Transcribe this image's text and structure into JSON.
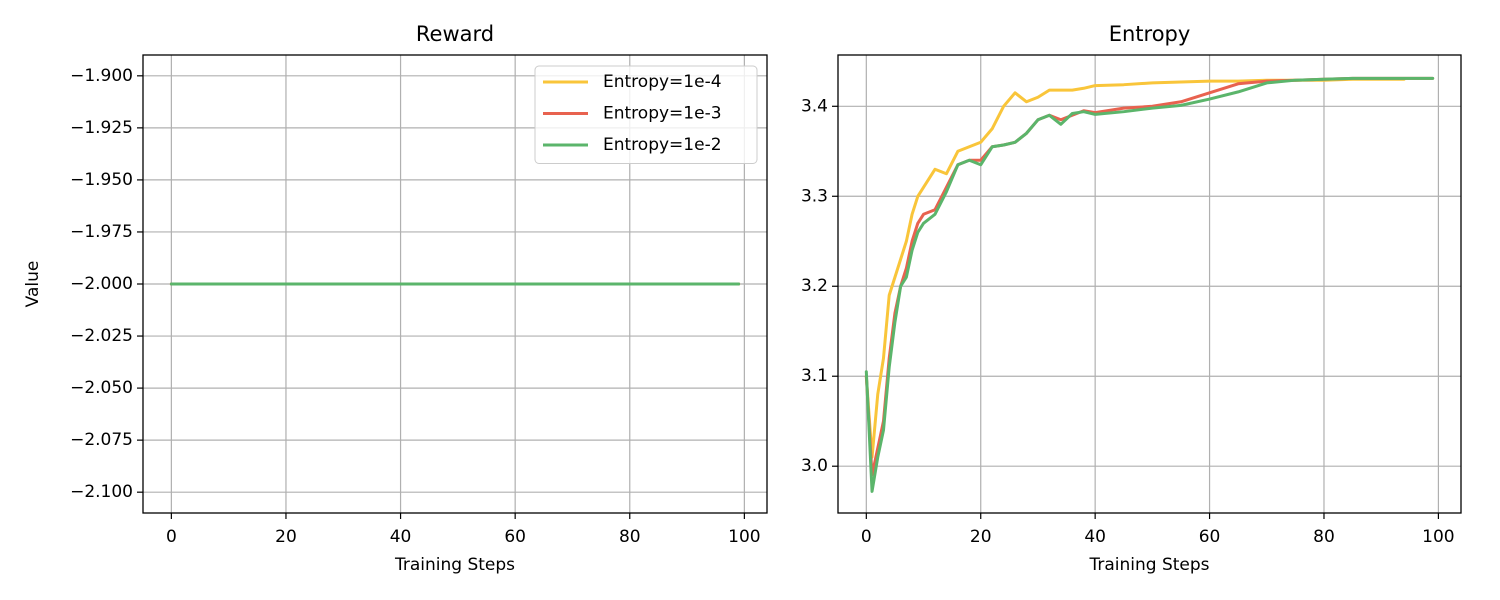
{
  "chart_data": [
    {
      "type": "line",
      "title": "Reward",
      "xlabel": "Training Steps",
      "ylabel": "Value",
      "x": [
        0,
        10,
        20,
        30,
        40,
        50,
        60,
        70,
        80,
        90,
        99
      ],
      "series": [
        {
          "name": "Entropy=1e-4",
          "color": "#f9c53a",
          "values": [
            -2.0,
            -2.0,
            -2.0,
            -2.0,
            -2.0,
            -2.0,
            -2.0,
            -2.0,
            -2.0,
            -2.0,
            -2.0
          ]
        },
        {
          "name": "Entropy=1e-3",
          "color": "#e8624f",
          "values": [
            -2.0,
            -2.0,
            -2.0,
            -2.0,
            -2.0,
            -2.0,
            -2.0,
            -2.0,
            -2.0,
            -2.0,
            -2.0
          ]
        },
        {
          "name": "Entropy=1e-2",
          "color": "#5bb56b",
          "values": [
            -2.0,
            -2.0,
            -2.0,
            -2.0,
            -2.0,
            -2.0,
            -2.0,
            -2.0,
            -2.0,
            -2.0,
            -2.0
          ]
        }
      ],
      "xlim": [
        -4.95,
        103.95
      ],
      "xticks": [
        0,
        20,
        40,
        60,
        80,
        100
      ],
      "ylim": [
        -2.11,
        -1.89
      ],
      "yticks": [
        {
          "value": -1.9,
          "label": "−1.900"
        },
        {
          "value": -1.925,
          "label": "−1.925"
        },
        {
          "value": -1.95,
          "label": "−1.950"
        },
        {
          "value": -1.975,
          "label": "−1.975"
        },
        {
          "value": -2.0,
          "label": "−2.000"
        },
        {
          "value": -2.025,
          "label": "−2.025"
        },
        {
          "value": -2.05,
          "label": "−2.050"
        },
        {
          "value": -2.075,
          "label": "−2.075"
        },
        {
          "value": -2.1,
          "label": "−2.100"
        }
      ],
      "grid": true,
      "legend": "upper right"
    },
    {
      "type": "line",
      "title": "Entropy",
      "xlabel": "Training Steps",
      "x": [
        0,
        1,
        2,
        3,
        4,
        5,
        6,
        7,
        8,
        9,
        10,
        12,
        14,
        16,
        18,
        20,
        22,
        24,
        26,
        28,
        30,
        32,
        34,
        36,
        38,
        40,
        45,
        50,
        55,
        60,
        65,
        70,
        75,
        80,
        85,
        90,
        94,
        99
      ],
      "series": [
        {
          "name": "Entropy=1e-4",
          "color": "#f9c53a",
          "values": [
            3.1,
            3.01,
            3.08,
            3.12,
            3.19,
            3.21,
            3.23,
            3.25,
            3.28,
            3.3,
            3.31,
            3.33,
            3.325,
            3.35,
            3.355,
            3.36,
            3.375,
            3.4,
            3.415,
            3.405,
            3.41,
            3.418,
            3.418,
            3.418,
            3.42,
            3.423,
            3.424,
            3.426,
            3.427,
            3.428,
            3.428,
            3.429,
            3.429,
            3.429,
            3.43,
            3.43,
            3.43,
            null
          ]
        },
        {
          "name": "Entropy=1e-3",
          "color": "#e8624f",
          "values": [
            3.1,
            2.99,
            3.02,
            3.05,
            3.12,
            3.17,
            3.2,
            3.22,
            3.25,
            3.27,
            3.28,
            3.285,
            3.31,
            3.335,
            3.34,
            3.34,
            3.355,
            3.357,
            3.36,
            3.37,
            3.385,
            3.39,
            3.385,
            3.39,
            3.395,
            3.393,
            3.398,
            3.4,
            3.405,
            3.415,
            3.425,
            3.428,
            3.429,
            3.43,
            3.431,
            3.431,
            3.431,
            3.431
          ]
        },
        {
          "name": "Entropy=1e-2",
          "color": "#5bb56b",
          "values": [
            3.105,
            2.972,
            3.01,
            3.04,
            3.11,
            3.16,
            3.2,
            3.21,
            3.24,
            3.26,
            3.27,
            3.28,
            3.305,
            3.335,
            3.34,
            3.335,
            3.355,
            3.357,
            3.36,
            3.37,
            3.385,
            3.39,
            3.38,
            3.392,
            3.394,
            3.391,
            3.394,
            3.398,
            3.401,
            3.408,
            3.416,
            3.426,
            3.429,
            3.43,
            3.431,
            3.431,
            3.431,
            3.431
          ]
        }
      ],
      "xlim": [
        -4.95,
        103.95
      ],
      "xticks": [
        0,
        20,
        40,
        60,
        80,
        100
      ],
      "ylim": [
        2.948,
        3.457
      ],
      "yticks": [
        {
          "value": 3.0,
          "label": "3.0"
        },
        3.1,
        3.2,
        3.3,
        3.4
      ],
      "grid": true,
      "legend": false
    }
  ]
}
